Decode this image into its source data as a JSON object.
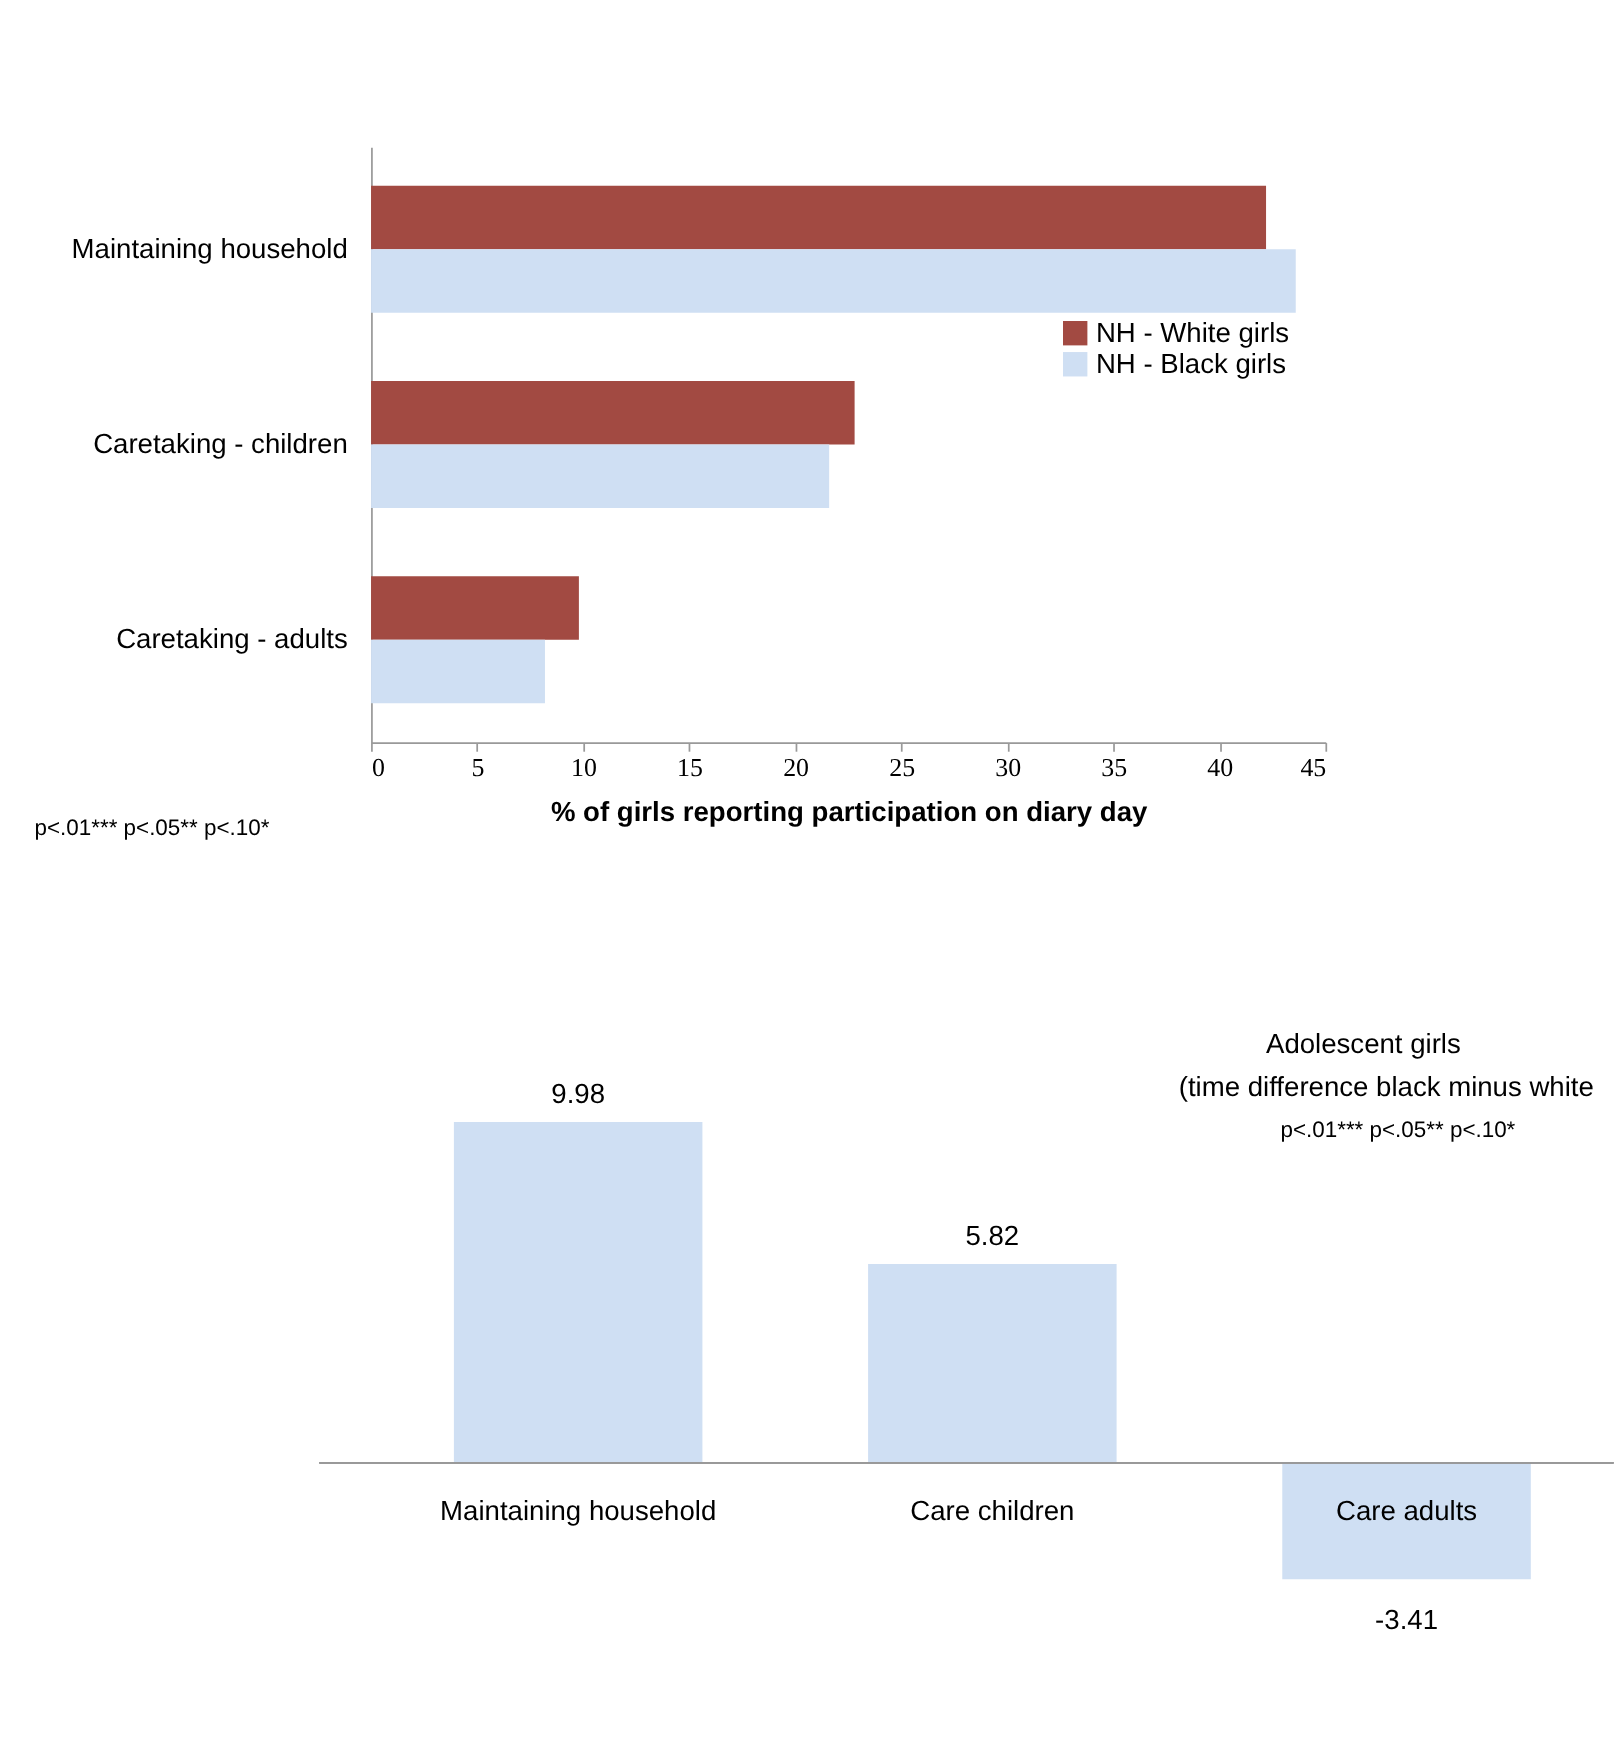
{
  "chart_data": [
    {
      "type": "bar",
      "orientation": "horizontal",
      "categories": [
        "Maintaining household",
        "Caretaking - children",
        "Caretaking - adults"
      ],
      "series": [
        {
          "name": "NH - White girls",
          "color": "#a24a42",
          "values": [
            42.2,
            22.8,
            9.8
          ]
        },
        {
          "name": "NH - Black girls",
          "color": "#cfdff3",
          "values": [
            43.6,
            21.6,
            8.2
          ]
        }
      ],
      "xlabel": "% of girls reporting participation on diary day",
      "xlim": [
        0,
        45
      ],
      "xticks": [
        0,
        5,
        10,
        15,
        20,
        25,
        30,
        35,
        40,
        45
      ],
      "legend": "right",
      "grid": false,
      "annotations": [
        "p<.01*** p<.05** p<.10*"
      ]
    },
    {
      "type": "bar",
      "categories": [
        "Maintaining household",
        "Care children",
        "Care adults"
      ],
      "values": [
        9.98,
        5.82,
        -3.41
      ],
      "color": "#cfdff3",
      "data_labels": true,
      "title": "Adolescent girls",
      "subtitle": "(time difference black minus white",
      "annotations": [
        "p<.01*** p<.05** p<.10*"
      ]
    }
  ]
}
